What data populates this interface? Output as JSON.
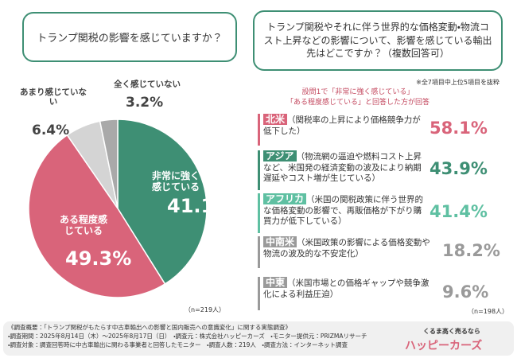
{
  "chart_data": {
    "type": "pie",
    "title": "トランプ関税の影響を感じていますか？",
    "categories": [
      "非常に強く感じている",
      "ある程度感じている",
      "あまり感じていない",
      "全く感じていない"
    ],
    "values": [
      41.1,
      49.3,
      6.4,
      3.2
    ],
    "value_labels": [
      "41.1%",
      "49.3%",
      "6.4%",
      "3.2%"
    ],
    "colors": [
      "#3e8f74",
      "#d9647a",
      "#d4d4d4",
      "#a9a9a9"
    ],
    "note": "（n=219人）"
  },
  "destinations": {
    "question": "トランプ関税やそれに伴う世界的な価格変動・物流コスト上昇などの影響について、影響を感じている輸出先はどこですか？（複数回答可）",
    "note1": "※全7項目中上位5項目を抜粋",
    "note2": "設問1で「非常に強く感じている」",
    "note3": "「ある程度感じている」と回答した方が回答",
    "items": [
      {
        "region": "北米",
        "reason": "（関税率の上昇により価格競争力が低下した）",
        "value": "58.1%",
        "color": "#d9647a"
      },
      {
        "region": "アジア",
        "reason": "（物流網の逼迫や燃料コスト上昇など、米国発の経済変動の波及により納期遅延やコスト増が生じている）",
        "value": "43.9%",
        "color": "#3e8f74"
      },
      {
        "region": "アフリカ",
        "reason": "（米国の関税政策に伴う世界的な価格変動の影響で、再販価格が下がり購買力が低下している）",
        "value": "41.4%",
        "color": "#5fc0a2"
      },
      {
        "region": "中南米",
        "reason": "（米国政策の影響による価格変動や物流の波及的な不安定化）",
        "value": "18.2%",
        "color": "#9a9a9a"
      },
      {
        "region": "中東",
        "reason": "（米国市場との価格ギャップや競争激化による利益圧迫）",
        "value": "9.6%",
        "color": "#9a9a9a"
      }
    ],
    "note": "（n=198人）"
  },
  "footer": {
    "lines": [
      "《調査概要：「トランプ関税がもたらす中古車輸出への影響と国内販売への意識変化」に関する実態調査》",
      "・調査期間：2025年8月14日（木）～2025年8月17日（日）　・調査元：株式会社ハッピーカーズ　・モニター提供元：PRIZMAリサーチ",
      "・調査対象：調査回答時に中古車輸出に関わる事業者と回答したモニター　・調査人数：219人　・調査方法：インターネット調査"
    ],
    "tagline": "くるま高く売るなら",
    "brand": "ハッピーカーズ"
  }
}
